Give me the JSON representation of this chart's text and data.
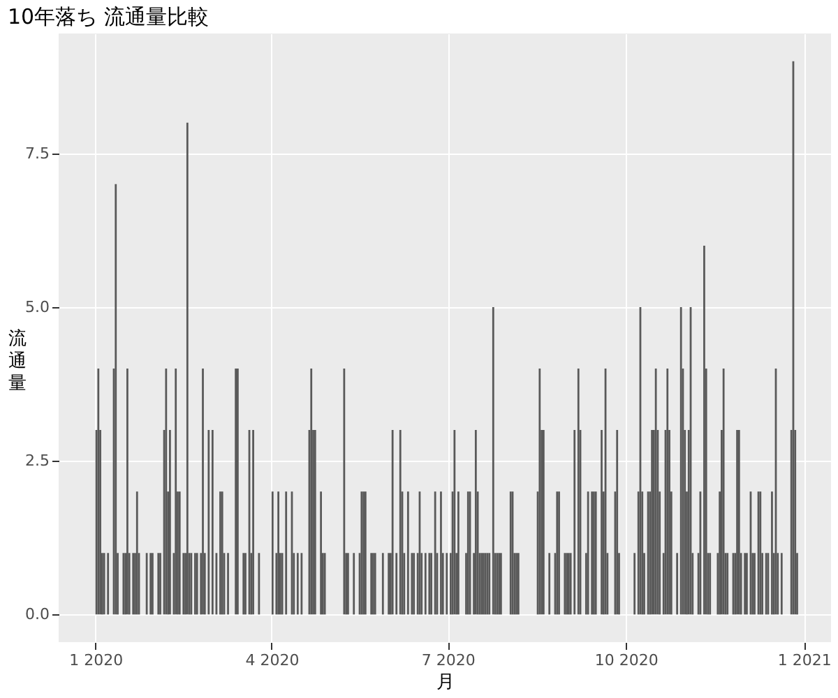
{
  "chart_data": {
    "type": "bar",
    "title": "10年落ち 流通量比較",
    "xlabel": "月",
    "ylabel": "流通量",
    "color": "#595959",
    "grid": true,
    "xlim": [
      "2019-12-13",
      "2021-01-15"
    ],
    "xticks": [
      {
        "value": "2020-01-01",
        "label": "1 2020"
      },
      {
        "value": "2020-04-01",
        "label": "4 2020"
      },
      {
        "value": "2020-07-01",
        "label": "7 2020"
      },
      {
        "value": "2020-10-01",
        "label": "10 2020"
      },
      {
        "value": "2021-01-01",
        "label": "1 2021"
      }
    ],
    "ylim": [
      -0.45,
      9.45
    ],
    "yticks": [
      {
        "value": 0,
        "label": "0.0"
      },
      2.5,
      {
        "value": 5,
        "label": "5.0"
      },
      7.5
    ],
    "x": [
      "2020-01-01",
      "2020-01-02",
      "2020-01-03",
      "2020-01-04",
      "2020-01-05",
      "2020-01-07",
      "2020-01-10",
      "2020-01-11",
      "2020-01-12",
      "2020-01-15",
      "2020-01-16",
      "2020-01-17",
      "2020-01-18",
      "2020-01-20",
      "2020-01-21",
      "2020-01-22",
      "2020-01-23",
      "2020-01-27",
      "2020-01-29",
      "2020-01-30",
      "2020-02-02",
      "2020-02-03",
      "2020-02-05",
      "2020-02-06",
      "2020-02-07",
      "2020-02-08",
      "2020-02-10",
      "2020-02-11",
      "2020-02-12",
      "2020-02-13",
      "2020-02-15",
      "2020-02-16",
      "2020-02-17",
      "2020-02-18",
      "2020-02-19",
      "2020-02-21",
      "2020-02-22",
      "2020-02-24",
      "2020-02-25",
      "2020-02-26",
      "2020-02-28",
      "2020-03-01",
      "2020-03-03",
      "2020-03-05",
      "2020-03-06",
      "2020-03-07",
      "2020-03-09",
      "2020-03-13",
      "2020-03-14",
      "2020-03-17",
      "2020-03-18",
      "2020-03-20",
      "2020-03-21",
      "2020-03-22",
      "2020-03-25",
      "2020-04-01",
      "2020-04-03",
      "2020-04-04",
      "2020-04-05",
      "2020-04-06",
      "2020-04-08",
      "2020-04-11",
      "2020-04-12",
      "2020-04-14",
      "2020-04-16",
      "2020-04-20",
      "2020-04-21",
      "2020-04-22",
      "2020-04-23",
      "2020-04-26",
      "2020-04-27",
      "2020-04-28",
      "2020-05-08",
      "2020-05-09",
      "2020-05-10",
      "2020-05-13",
      "2020-05-16",
      "2020-05-17",
      "2020-05-18",
      "2020-05-19",
      "2020-05-22",
      "2020-05-23",
      "2020-05-24",
      "2020-05-28",
      "2020-05-31",
      "2020-06-01",
      "2020-06-02",
      "2020-06-04",
      "2020-06-06",
      "2020-06-07",
      "2020-06-08",
      "2020-06-10",
      "2020-06-12",
      "2020-06-13",
      "2020-06-15",
      "2020-06-16",
      "2020-06-17",
      "2020-06-19",
      "2020-06-21",
      "2020-06-22",
      "2020-06-24",
      "2020-06-25",
      "2020-06-27",
      "2020-06-28",
      "2020-06-30",
      "2020-07-02",
      "2020-07-03",
      "2020-07-04",
      "2020-07-05",
      "2020-07-06",
      "2020-07-10",
      "2020-07-11",
      "2020-07-12",
      "2020-07-14",
      "2020-07-15",
      "2020-07-16",
      "2020-07-17",
      "2020-07-18",
      "2020-07-19",
      "2020-07-20",
      "2020-07-21",
      "2020-07-22",
      "2020-07-24",
      "2020-07-25",
      "2020-07-26",
      "2020-07-27",
      "2020-07-28",
      "2020-08-02",
      "2020-08-03",
      "2020-08-04",
      "2020-08-05",
      "2020-08-06",
      "2020-08-16",
      "2020-08-17",
      "2020-08-18",
      "2020-08-19",
      "2020-08-22",
      "2020-08-25",
      "2020-08-26",
      "2020-08-27",
      "2020-08-30",
      "2020-08-31",
      "2020-09-01",
      "2020-09-02",
      "2020-09-04",
      "2020-09-06",
      "2020-09-07",
      "2020-09-10",
      "2020-09-11",
      "2020-09-13",
      "2020-09-14",
      "2020-09-15",
      "2020-09-18",
      "2020-09-19",
      "2020-09-20",
      "2020-09-21",
      "2020-09-25",
      "2020-09-26",
      "2020-09-27",
      "2020-10-05",
      "2020-10-07",
      "2020-10-08",
      "2020-10-09",
      "2020-10-10",
      "2020-10-12",
      "2020-10-13",
      "2020-10-14",
      "2020-10-15",
      "2020-10-16",
      "2020-10-17",
      "2020-10-18",
      "2020-10-20",
      "2020-10-21",
      "2020-10-22",
      "2020-10-23",
      "2020-10-24",
      "2020-10-27",
      "2020-10-29",
      "2020-10-30",
      "2020-10-31",
      "2020-11-01",
      "2020-11-02",
      "2020-11-03",
      "2020-11-04",
      "2020-11-07",
      "2020-11-08",
      "2020-11-10",
      "2020-11-11",
      "2020-11-12",
      "2020-11-13",
      "2020-11-17",
      "2020-11-18",
      "2020-11-19",
      "2020-11-20",
      "2020-11-21",
      "2020-11-22",
      "2020-11-25",
      "2020-11-26",
      "2020-11-27",
      "2020-11-28",
      "2020-11-29",
      "2020-12-01",
      "2020-12-02",
      "2020-12-04",
      "2020-12-05",
      "2020-12-06",
      "2020-12-08",
      "2020-12-09",
      "2020-12-10",
      "2020-12-12",
      "2020-12-13",
      "2020-12-15",
      "2020-12-16",
      "2020-12-17",
      "2020-12-18",
      "2020-12-20",
      "2020-12-25",
      "2020-12-26",
      "2020-12-27",
      "2020-12-28"
    ],
    "values": [
      3,
      4,
      3,
      1,
      1,
      1,
      4,
      7,
      1,
      1,
      1,
      4,
      1,
      1,
      1,
      2,
      1,
      1,
      1,
      1,
      1,
      1,
      3,
      4,
      2,
      3,
      1,
      4,
      2,
      2,
      1,
      1,
      8,
      1,
      1,
      1,
      1,
      1,
      4,
      1,
      3,
      3,
      1,
      2,
      2,
      1,
      1,
      4,
      4,
      1,
      1,
      3,
      1,
      3,
      1,
      2,
      1,
      2,
      1,
      1,
      2,
      2,
      1,
      1,
      1,
      3,
      4,
      3,
      3,
      2,
      1,
      1,
      4,
      1,
      1,
      1,
      1,
      2,
      2,
      2,
      1,
      1,
      1,
      1,
      1,
      1,
      3,
      1,
      3,
      2,
      1,
      2,
      1,
      1,
      1,
      2,
      1,
      1,
      1,
      1,
      2,
      1,
      2,
      1,
      1,
      1,
      2,
      3,
      1,
      2,
      1,
      2,
      2,
      1,
      3,
      2,
      1,
      1,
      1,
      1,
      1,
      1,
      5,
      1,
      1,
      1,
      1,
      2,
      2,
      1,
      1,
      1,
      2,
      4,
      3,
      3,
      1,
      1,
      2,
      2,
      1,
      1,
      1,
      1,
      3,
      4,
      3,
      1,
      2,
      2,
      2,
      2,
      3,
      2,
      4,
      1,
      2,
      3,
      1,
      1,
      2,
      5,
      2,
      1,
      2,
      2,
      3,
      3,
      4,
      3,
      2,
      1,
      3,
      4,
      3,
      2,
      1,
      5,
      4,
      3,
      2,
      3,
      5,
      1,
      1,
      2,
      6,
      4,
      1,
      1,
      1,
      2,
      3,
      4,
      1,
      1,
      1,
      1,
      3,
      3,
      1,
      1,
      1,
      2,
      1,
      1,
      2,
      2,
      1,
      1,
      1,
      2,
      1,
      4,
      1,
      1,
      3,
      9,
      3,
      1
    ]
  }
}
